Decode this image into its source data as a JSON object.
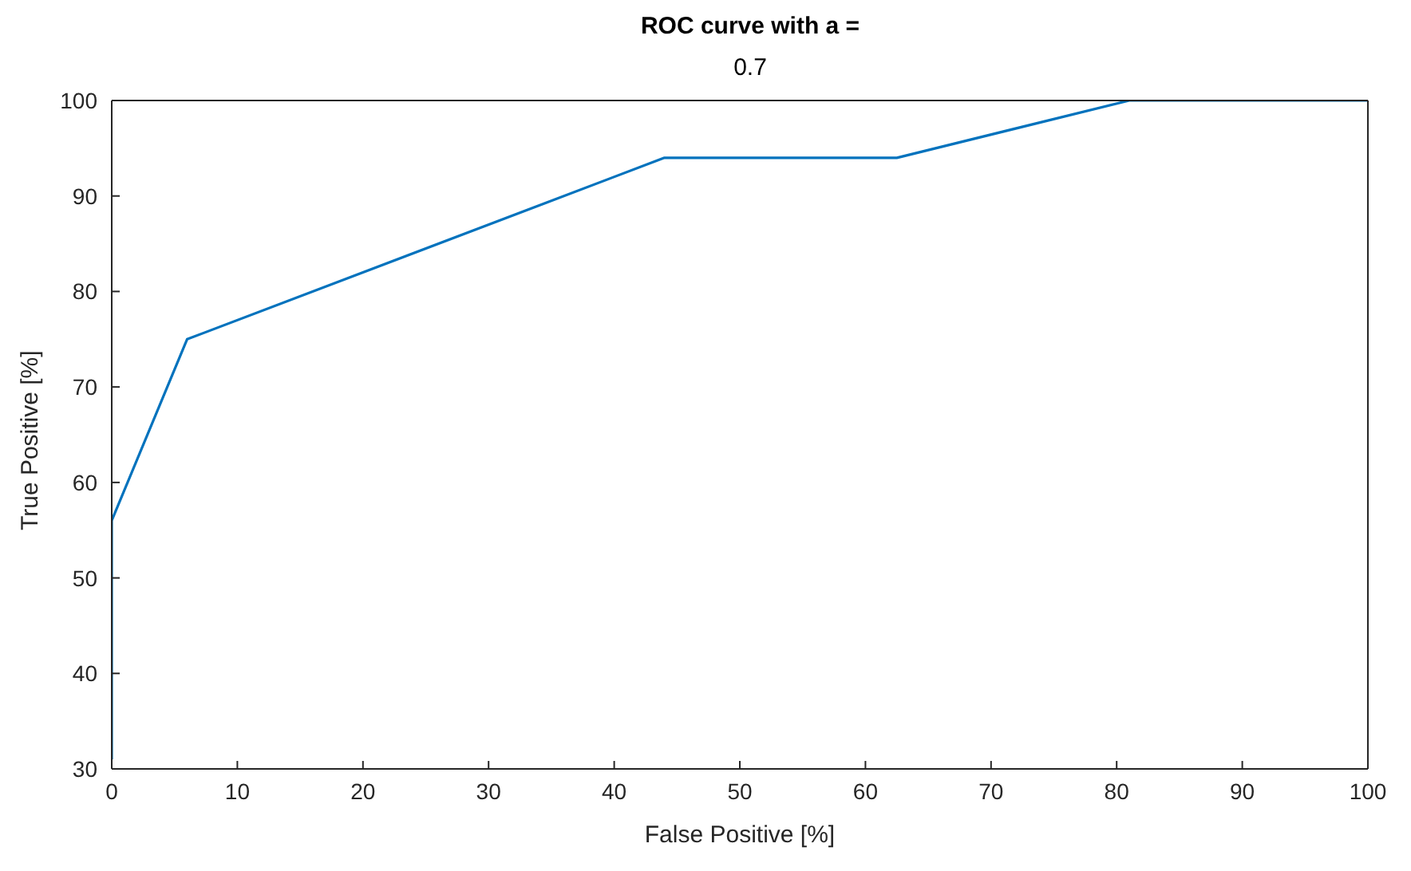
{
  "chart_data": {
    "type": "line",
    "title": "ROC curve with a =",
    "subtitle": "0.7",
    "xlabel": "False Positive [%]",
    "ylabel": "True Positive [%]",
    "x": [
      0,
      0,
      6,
      44,
      62.5,
      81,
      100
    ],
    "series": [
      {
        "color": "#0072bd",
        "values": [
          31,
          56,
          75,
          94,
          94,
          100,
          100
        ]
      }
    ],
    "xlim": [
      0,
      100
    ],
    "xticks": [
      0,
      10,
      20,
      30,
      40,
      50,
      60,
      70,
      80,
      90,
      100
    ],
    "ylim": [
      30,
      100
    ],
    "yticks": [
      30,
      40,
      50,
      60,
      70,
      80,
      90,
      100
    ],
    "grid": false,
    "legend": false,
    "marker": "none",
    "line_style": "solid"
  }
}
